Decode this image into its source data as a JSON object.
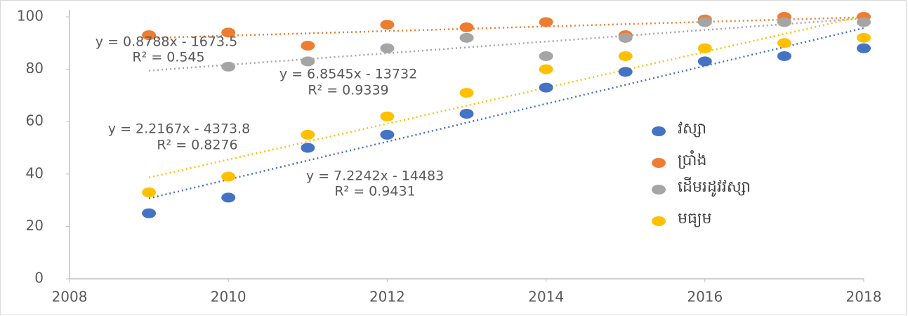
{
  "chart_data": {
    "type": "scatter",
    "x": [
      2009,
      2010,
      2011,
      2012,
      2013,
      2014,
      2015,
      2016,
      2017,
      2018
    ],
    "series": [
      {
        "name": "វស្សា",
        "color": "#4472c4",
        "values": [
          25,
          31,
          50,
          55,
          63,
          73,
          79,
          83,
          85,
          88
        ]
      },
      {
        "name": "ប្រាំង",
        "color": "#ed7d31",
        "values": [
          93,
          94,
          89,
          97,
          96,
          98,
          93,
          99,
          100,
          100
        ]
      },
      {
        "name": "ដើមរដូវវស្សា",
        "color": "#a5a5a5",
        "values": [
          null,
          81,
          83,
          88,
          92,
          85,
          92,
          98,
          98,
          98
        ]
      },
      {
        "name": "មធ្យម",
        "color": "#ffc000",
        "values": [
          33,
          39,
          55,
          62,
          71,
          80,
          85,
          88,
          90,
          92
        ]
      }
    ],
    "trendlines": true,
    "annotations": [
      {
        "equation": "y = 0.8788x - 1673.5",
        "r2": "R² = 0.545"
      },
      {
        "equation": "y = 6.8545x - 13732",
        "r2": "R² = 0.9339"
      },
      {
        "equation": "y = 2.2167x - 4373.8",
        "r2": "R² = 0.8276"
      },
      {
        "equation": "y = 7.2242x - 14483",
        "r2": "R² = 0.9431"
      }
    ],
    "xlim": [
      2008,
      2018
    ],
    "xticks": [
      2008,
      2010,
      2012,
      2014,
      2016,
      2018
    ],
    "ylim": [
      0,
      100
    ],
    "yticks": [
      0,
      20,
      40,
      60,
      80,
      100
    ],
    "legend": "right"
  }
}
